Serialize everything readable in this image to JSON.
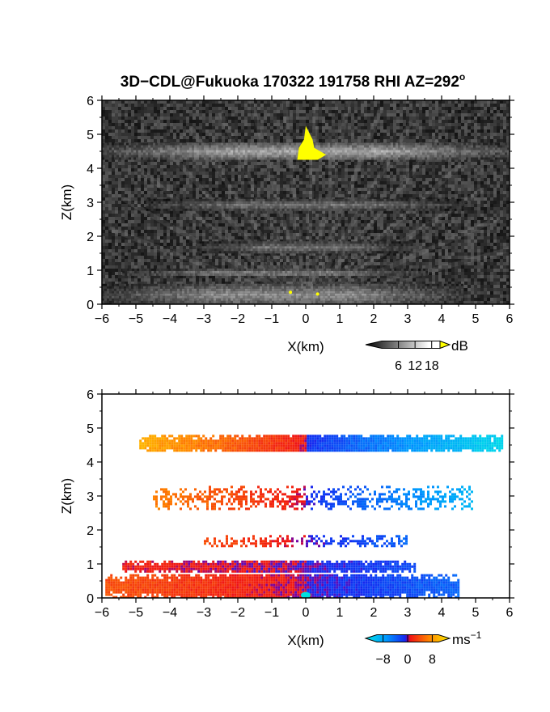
{
  "figure": {
    "title_main": "3D−CDL@Fukuoka 170322 191758 RHI AZ=292",
    "title_deg": "o"
  },
  "chart_data": [
    {
      "type": "heatmap",
      "name": "backscatter",
      "xlabel": "X(km)",
      "ylabel": "Z(km)",
      "xlim": [
        -6,
        6
      ],
      "ylim": [
        0,
        6
      ],
      "xticks": [
        "−6",
        "−5",
        "−4",
        "−3",
        "−2",
        "−1",
        "0",
        "1",
        "2",
        "3",
        "4",
        "5",
        "6"
      ],
      "yticks": [
        "0",
        "1",
        "2",
        "3",
        "4",
        "5",
        "6"
      ],
      "colorbar": {
        "unit": "dB",
        "ticks": [
          "6",
          "12",
          "18"
        ],
        "tick_values": [
          6,
          12,
          18
        ],
        "range": [
          0,
          21
        ]
      },
      "layers": [
        {
          "zmin": 4.3,
          "zmax": 4.75,
          "xmin": -6,
          "xmax": 6,
          "intensity_db": 14
        },
        {
          "zmin": 2.8,
          "zmax": 3.1,
          "xmin": -4.7,
          "xmax": 4.6,
          "intensity_db": 10
        },
        {
          "zmin": 1.55,
          "zmax": 1.85,
          "xmin": -3.2,
          "xmax": 3.1,
          "intensity_db": 10
        },
        {
          "zmin": 0.85,
          "zmax": 1.05,
          "xmin": -5.4,
          "xmax": 3.6,
          "intensity_db": 11
        },
        {
          "zmin": 0.0,
          "zmax": 0.6,
          "xmin": -6,
          "xmax": 4.6,
          "intensity_db": 12
        }
      ],
      "saturated_region": {
        "xrange": [
          -0.25,
          0.6
        ],
        "zrange": [
          4.25,
          5.25
        ],
        "color": "#ffff00"
      }
    },
    {
      "type": "heatmap",
      "name": "doppler_velocity",
      "xlabel": "X(km)",
      "ylabel": "Z(km)",
      "xlim": [
        -6,
        6
      ],
      "ylim": [
        0,
        6
      ],
      "xticks": [
        "−6",
        "−5",
        "−4",
        "−3",
        "−2",
        "−1",
        "0",
        "1",
        "2",
        "3",
        "4",
        "5",
        "6"
      ],
      "yticks": [
        "0",
        "1",
        "2",
        "3",
        "4",
        "5",
        "6"
      ],
      "colorbar": {
        "unit": "ms",
        "unit_exp": "−1",
        "ticks": [
          "−8",
          "0",
          "8"
        ],
        "tick_values": [
          -8,
          0,
          8
        ],
        "range": [
          -10,
          10
        ]
      },
      "layers": [
        {
          "zmin": 4.3,
          "zmax": 4.8,
          "xmin": -4.9,
          "xmax": 5.8,
          "vel_left": 7,
          "vel_right": -9
        },
        {
          "zmin": 2.6,
          "zmax": 3.3,
          "xmin": -4.5,
          "xmax": 4.9,
          "vel_left": 5,
          "vel_right": -7
        },
        {
          "zmin": 1.5,
          "zmax": 1.85,
          "xmin": -3.0,
          "xmax": 3.0,
          "vel_left": 3,
          "vel_right": -3
        },
        {
          "zmin": 0.8,
          "zmax": 1.1,
          "xmin": -5.4,
          "xmax": 3.2,
          "vel_left": 1,
          "vel_right": -2
        },
        {
          "zmin": 0.05,
          "zmax": 0.7,
          "xmin": -5.9,
          "xmax": 4.5,
          "vel_left": 3,
          "vel_right": -3
        }
      ]
    }
  ]
}
